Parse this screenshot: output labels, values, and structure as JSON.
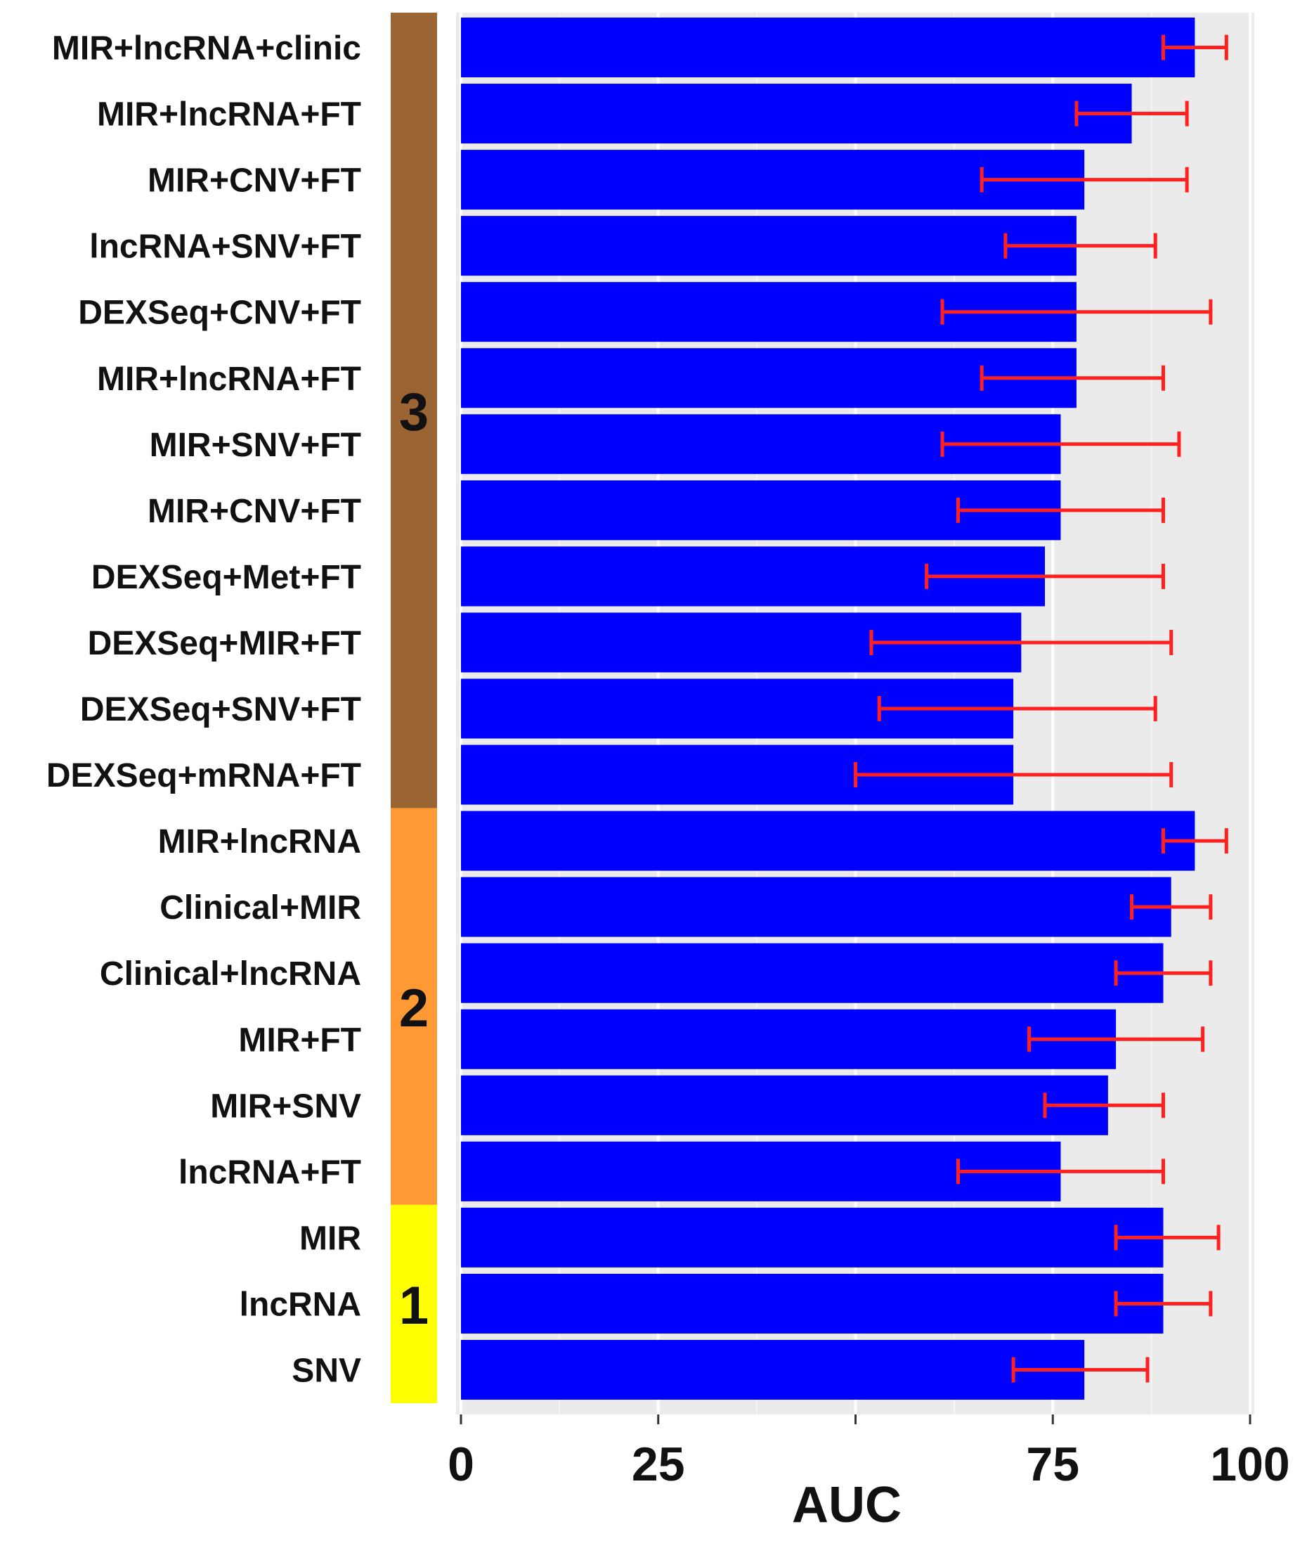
{
  "chart_data": {
    "type": "bar",
    "orientation": "horizontal",
    "xlabel": "AUC",
    "xlim": [
      0,
      100
    ],
    "x_tick_labels": [
      "0",
      "25",
      "75",
      "100"
    ],
    "x_tick_values": [
      0,
      25,
      75,
      100
    ],
    "minor_grid_values": [
      12.5,
      37.5,
      62.5,
      87.5
    ],
    "grid": true,
    "bar_color": "#0000ff",
    "error_bar_color": "#ff2020",
    "panel_background": "#ebebeb",
    "groups": [
      {
        "label": "3",
        "color": "#9a6433",
        "first_index": 0,
        "last_index": 11
      },
      {
        "label": "2",
        "color": "#ff9933",
        "first_index": 12,
        "last_index": 17
      },
      {
        "label": "1",
        "color": "#ffff00",
        "first_index": 18,
        "last_index": 20
      }
    ],
    "categories": [
      "MIR+lncRNA+clinic",
      "MIR+lncRNA+FT",
      "MIR+CNV+FT",
      "lncRNA+SNV+FT",
      "DEXSeq+CNV+FT",
      "MIR+lncRNA+FT",
      "MIR+SNV+FT",
      "MIR+CNV+FT",
      "DEXSeq+Met+FT",
      "DEXSeq+MIR+FT",
      "DEXSeq+SNV+FT",
      "DEXSeq+mRNA+FT",
      "MIR+lncRNA",
      "Clinical+MIR",
      "Clinical+lncRNA",
      "MIR+FT",
      "MIR+SNV",
      "lncRNA+FT",
      "MIR",
      "lncRNA",
      "SNV"
    ],
    "values": [
      93,
      85,
      79,
      78,
      78,
      78,
      76,
      76,
      74,
      71,
      70,
      70,
      93,
      90,
      89,
      83,
      82,
      76,
      89,
      89,
      79
    ],
    "error_low": [
      89,
      78,
      66,
      69,
      61,
      66,
      61,
      63,
      59,
      52,
      53,
      50,
      89,
      85,
      83,
      72,
      74,
      63,
      83,
      83,
      70
    ],
    "error_high": [
      97,
      92,
      92,
      88,
      95,
      89,
      91,
      89,
      89,
      90,
      88,
      90,
      97,
      95,
      95,
      94,
      89,
      89,
      96,
      95,
      87
    ]
  }
}
